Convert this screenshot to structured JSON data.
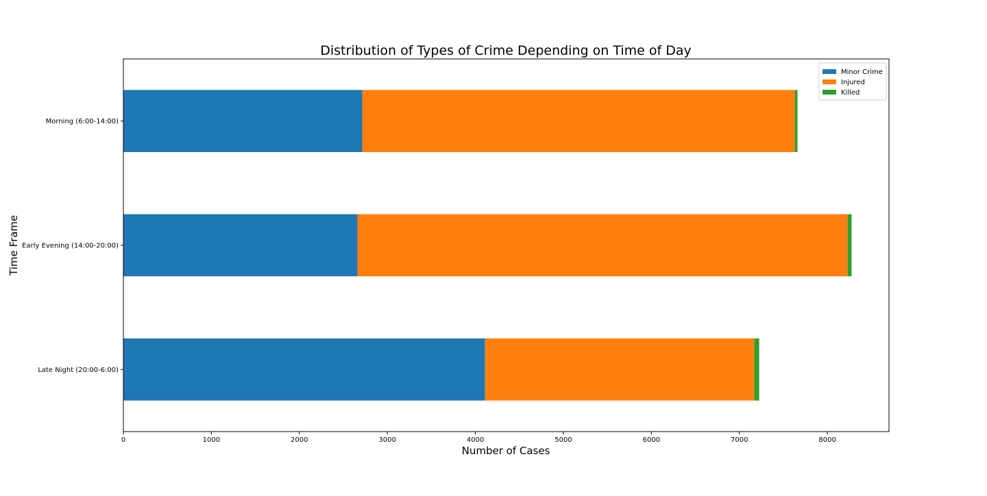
{
  "chart_data": {
    "type": "bar",
    "orientation": "horizontal",
    "stacked": true,
    "title": "Distribution of Types of Crime Depending on Time of Day",
    "xlabel": "Number of Cases",
    "ylabel": "Time Frame",
    "categories": [
      "Morning (6:00-14:00)",
      "Early Evening (14:00-20:00)",
      "Late Night (20:00-6:00)"
    ],
    "series": [
      {
        "name": "Minor Crime",
        "color": "#1f77b4",
        "values": [
          2715,
          2660,
          4110
        ]
      },
      {
        "name": "Injured",
        "color": "#ff7f0e",
        "values": [
          4915,
          5570,
          3060
        ]
      },
      {
        "name": "Killed",
        "color": "#2ca02c",
        "values": [
          30,
          45,
          55
        ]
      }
    ],
    "xlim": [
      0,
      8700
    ],
    "xticks": [
      0,
      1000,
      2000,
      3000,
      4000,
      5000,
      6000,
      7000,
      8000
    ],
    "grid": false,
    "legend_position": "top-right"
  }
}
